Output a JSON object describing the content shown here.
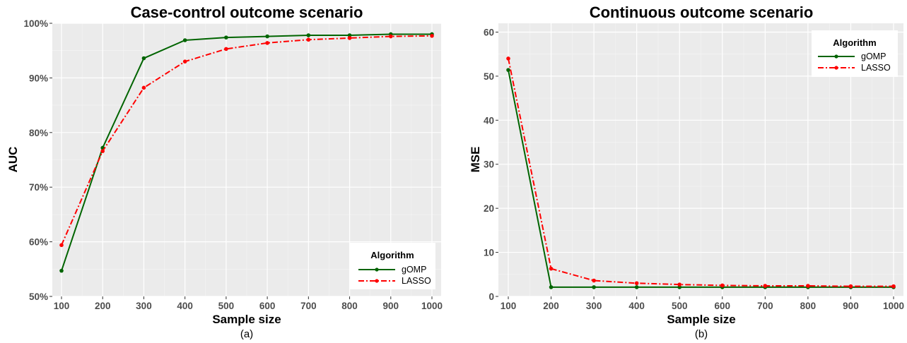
{
  "colors": {
    "panel_bg": "#EBEBEB",
    "grid_major": "#FFFFFF",
    "gomp": "#006400",
    "lasso": "#FF0000"
  },
  "chart_data": [
    {
      "type": "line",
      "title": "Case-control outcome scenario",
      "xlabel": "Sample size",
      "ylabel": "AUC",
      "caption": "(a)",
      "x": [
        100,
        200,
        300,
        400,
        500,
        600,
        700,
        800,
        900,
        1000
      ],
      "xticks": [
        "100",
        "200",
        "300",
        "400",
        "500",
        "600",
        "700",
        "800",
        "900",
        "1000"
      ],
      "xlim": [
        100,
        1000
      ],
      "ylim": [
        50,
        100
      ],
      "yticks": [
        50,
        60,
        70,
        80,
        90,
        100
      ],
      "ytick_labels": [
        "50%",
        "60%",
        "70%",
        "80%",
        "90%",
        "100%"
      ],
      "grid": true,
      "legend": {
        "title": "Algorithm",
        "position": "bottom-right"
      },
      "series": [
        {
          "name": "gOMP",
          "color": "#006400",
          "linestyle": "solid",
          "values": [
            54.7,
            77.2,
            93.6,
            96.9,
            97.4,
            97.6,
            97.8,
            97.8,
            98.0,
            98.0
          ]
        },
        {
          "name": "LASSO",
          "color": "#FF0000",
          "linestyle": "dashdot",
          "values": [
            59.4,
            76.6,
            88.2,
            93.0,
            95.3,
            96.4,
            97.0,
            97.3,
            97.6,
            97.7
          ]
        }
      ]
    },
    {
      "type": "line",
      "title": "Continuous outcome scenario",
      "xlabel": "Sample size",
      "ylabel": "MSE",
      "caption": "(b)",
      "x": [
        100,
        200,
        300,
        400,
        500,
        600,
        700,
        800,
        900,
        1000
      ],
      "xticks": [
        "100",
        "200",
        "300",
        "400",
        "500",
        "600",
        "700",
        "800",
        "900",
        "1000"
      ],
      "xlim": [
        100,
        1000
      ],
      "ylim": [
        0,
        62
      ],
      "yticks": [
        0,
        10,
        20,
        30,
        40,
        50,
        60
      ],
      "ytick_labels": [
        "0",
        "10",
        "20",
        "30",
        "40",
        "50",
        "60"
      ],
      "grid": true,
      "legend": {
        "title": "Algorithm",
        "position": "top-right"
      },
      "series": [
        {
          "name": "gOMP",
          "color": "#006400",
          "linestyle": "solid",
          "values": [
            51.4,
            2.1,
            2.1,
            2.1,
            2.1,
            2.1,
            2.1,
            2.1,
            2.1,
            2.1
          ]
        },
        {
          "name": "LASSO",
          "color": "#FF0000",
          "linestyle": "dashdot",
          "values": [
            54.0,
            6.3,
            3.6,
            3.0,
            2.7,
            2.5,
            2.4,
            2.4,
            2.3,
            2.3
          ]
        }
      ]
    }
  ]
}
